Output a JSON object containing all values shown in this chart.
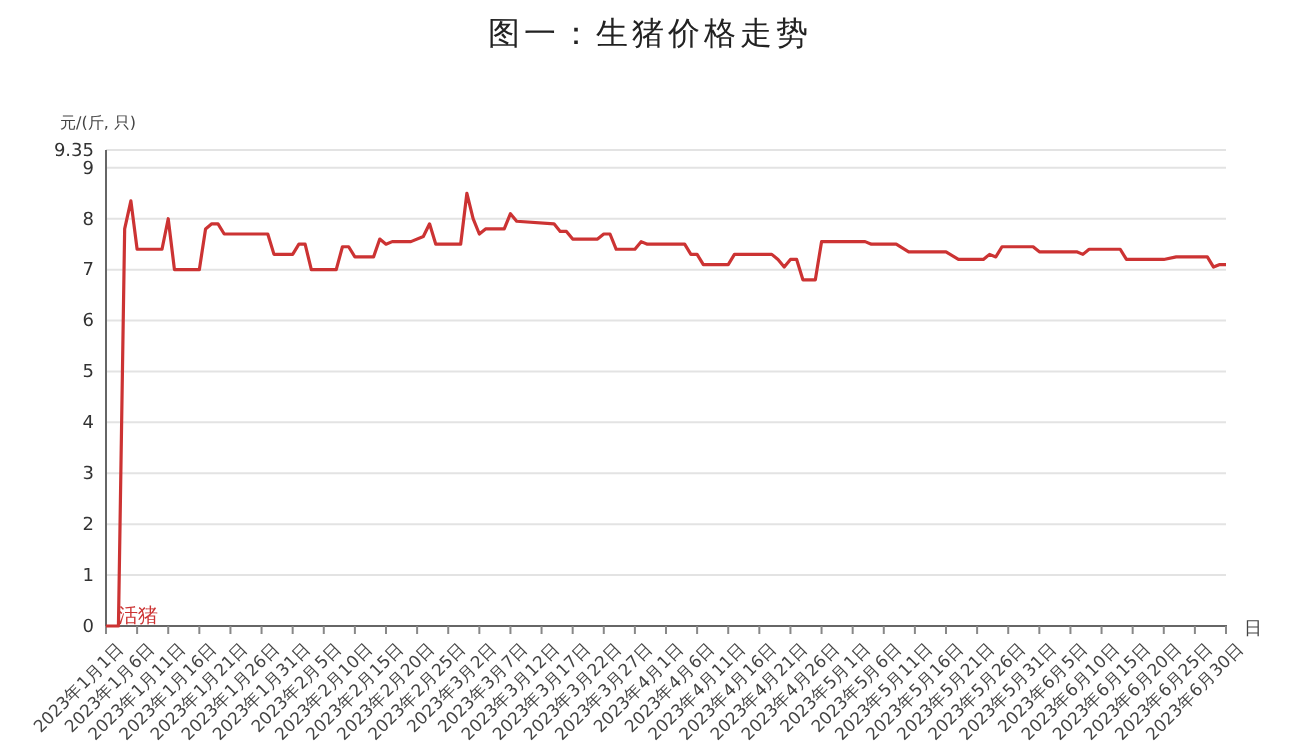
{
  "chart_data": {
    "type": "line",
    "title": "图一：生猪价格走势",
    "xlabel": "日",
    "ylabel": "元/(斤, 只)",
    "x": [
      "2023-01-01",
      "2023-01-03",
      "2023-01-04",
      "2023-01-05",
      "2023-01-06",
      "2023-01-10",
      "2023-01-11",
      "2023-01-12",
      "2023-01-16",
      "2023-01-17",
      "2023-01-18",
      "2023-01-19",
      "2023-01-20",
      "2023-01-27",
      "2023-01-28",
      "2023-01-31",
      "2023-02-01",
      "2023-02-02",
      "2023-02-03",
      "2023-02-07",
      "2023-02-08",
      "2023-02-09",
      "2023-02-10",
      "2023-02-13",
      "2023-02-14",
      "2023-02-15",
      "2023-02-16",
      "2023-02-19",
      "2023-02-21",
      "2023-02-22",
      "2023-02-23",
      "2023-02-27",
      "2023-02-28",
      "2023-03-01",
      "2023-03-02",
      "2023-03-03",
      "2023-03-06",
      "2023-03-07",
      "2023-03-08",
      "2023-03-14",
      "2023-03-15",
      "2023-03-16",
      "2023-03-17",
      "2023-03-21",
      "2023-03-22",
      "2023-03-23",
      "2023-03-24",
      "2023-03-27",
      "2023-03-28",
      "2023-03-29",
      "2023-04-04",
      "2023-04-05",
      "2023-04-06",
      "2023-04-07",
      "2023-04-11",
      "2023-04-12",
      "2023-04-18",
      "2023-04-19",
      "2023-04-20",
      "2023-04-21",
      "2023-04-22",
      "2023-04-23",
      "2023-04-25",
      "2023-04-26",
      "2023-05-03",
      "2023-05-04",
      "2023-05-08",
      "2023-05-10",
      "2023-05-16",
      "2023-05-18",
      "2023-05-22",
      "2023-05-23",
      "2023-05-24",
      "2023-05-25",
      "2023-05-30",
      "2023-05-31",
      "2023-06-06",
      "2023-06-07",
      "2023-06-08",
      "2023-06-13",
      "2023-06-14",
      "2023-06-20",
      "2023-06-22",
      "2023-06-27",
      "2023-06-28",
      "2023-06-29",
      "2023-06-30"
    ],
    "series": [
      {
        "name": "活猪",
        "color": "#cc3333",
        "values": [
          0,
          0,
          7.8,
          8.35,
          7.4,
          7.4,
          8.0,
          7.0,
          7.0,
          7.8,
          7.9,
          7.9,
          7.7,
          7.7,
          7.3,
          7.3,
          7.5,
          7.5,
          7.0,
          7.0,
          7.45,
          7.45,
          7.25,
          7.25,
          7.6,
          7.5,
          7.55,
          7.55,
          7.65,
          7.9,
          7.5,
          7.5,
          8.5,
          8.0,
          7.7,
          7.8,
          7.8,
          8.1,
          7.95,
          7.9,
          7.75,
          7.75,
          7.6,
          7.6,
          7.7,
          7.7,
          7.4,
          7.4,
          7.55,
          7.5,
          7.5,
          7.3,
          7.3,
          7.1,
          7.1,
          7.3,
          7.3,
          7.2,
          7.05,
          7.2,
          7.2,
          6.8,
          6.8,
          7.55,
          7.55,
          7.5,
          7.5,
          7.35,
          7.35,
          7.2,
          7.2,
          7.3,
          7.25,
          7.45,
          7.45,
          7.35,
          7.35,
          7.3,
          7.4,
          7.4,
          7.2,
          7.2,
          7.25,
          7.25,
          7.05,
          7.1,
          7.1
        ]
      }
    ],
    "xlim": [
      "2023-01-01",
      "2023-06-30"
    ],
    "xticks": [
      {
        "value": "2023-01-01",
        "label": "2023年1月1日"
      },
      {
        "value": "2023-01-06",
        "label": "2023年1月6日"
      },
      {
        "value": "2023-01-11",
        "label": "2023年1月11日"
      },
      {
        "value": "2023-01-16",
        "label": "2023年1月16日"
      },
      {
        "value": "2023-01-21",
        "label": "2023年1月21日"
      },
      {
        "value": "2023-01-26",
        "label": "2023年1月26日"
      },
      {
        "value": "2023-01-31",
        "label": "2023年1月31日"
      },
      {
        "value": "2023-02-05",
        "label": "2023年2月5日"
      },
      {
        "value": "2023-02-10",
        "label": "2023年2月10日"
      },
      {
        "value": "2023-02-15",
        "label": "2023年2月15日"
      },
      {
        "value": "2023-02-20",
        "label": "2023年2月20日"
      },
      {
        "value": "2023-02-25",
        "label": "2023年2月25日"
      },
      {
        "value": "2023-03-02",
        "label": "2023年3月2日"
      },
      {
        "value": "2023-03-07",
        "label": "2023年3月7日"
      },
      {
        "value": "2023-03-12",
        "label": "2023年3月12日"
      },
      {
        "value": "2023-03-17",
        "label": "2023年3月17日"
      },
      {
        "value": "2023-03-22",
        "label": "2023年3月22日"
      },
      {
        "value": "2023-03-27",
        "label": "2023年3月27日"
      },
      {
        "value": "2023-04-01",
        "label": "2023年4月1日"
      },
      {
        "value": "2023-04-06",
        "label": "2023年4月6日"
      },
      {
        "value": "2023-04-11",
        "label": "2023年4月11日"
      },
      {
        "value": "2023-04-16",
        "label": "2023年4月16日"
      },
      {
        "value": "2023-04-21",
        "label": "2023年4月21日"
      },
      {
        "value": "2023-04-26",
        "label": "2023年4月26日"
      },
      {
        "value": "2023-05-01",
        "label": "2023年5月1日"
      },
      {
        "value": "2023-05-06",
        "label": "2023年5月6日"
      },
      {
        "value": "2023-05-11",
        "label": "2023年5月11日"
      },
      {
        "value": "2023-05-16",
        "label": "2023年5月16日"
      },
      {
        "value": "2023-05-21",
        "label": "2023年5月21日"
      },
      {
        "value": "2023-05-26",
        "label": "2023年5月26日"
      },
      {
        "value": "2023-05-31",
        "label": "2023年5月31日"
      },
      {
        "value": "2023-06-05",
        "label": "2023年6月5日"
      },
      {
        "value": "2023-06-10",
        "label": "2023年6月10日"
      },
      {
        "value": "2023-06-15",
        "label": "2023年6月15日"
      },
      {
        "value": "2023-06-20",
        "label": "2023年6月20日"
      },
      {
        "value": "2023-06-25",
        "label": "2023年6月25日"
      },
      {
        "value": "2023-06-30",
        "label": "2023年6月30日"
      }
    ],
    "ylim": [
      0,
      9.35
    ],
    "yticks": [
      0,
      1,
      2,
      3,
      4,
      5,
      6,
      7,
      8,
      9,
      9.35
    ],
    "grid": "y",
    "legend": false,
    "marker": "none",
    "line_style": "solid"
  }
}
